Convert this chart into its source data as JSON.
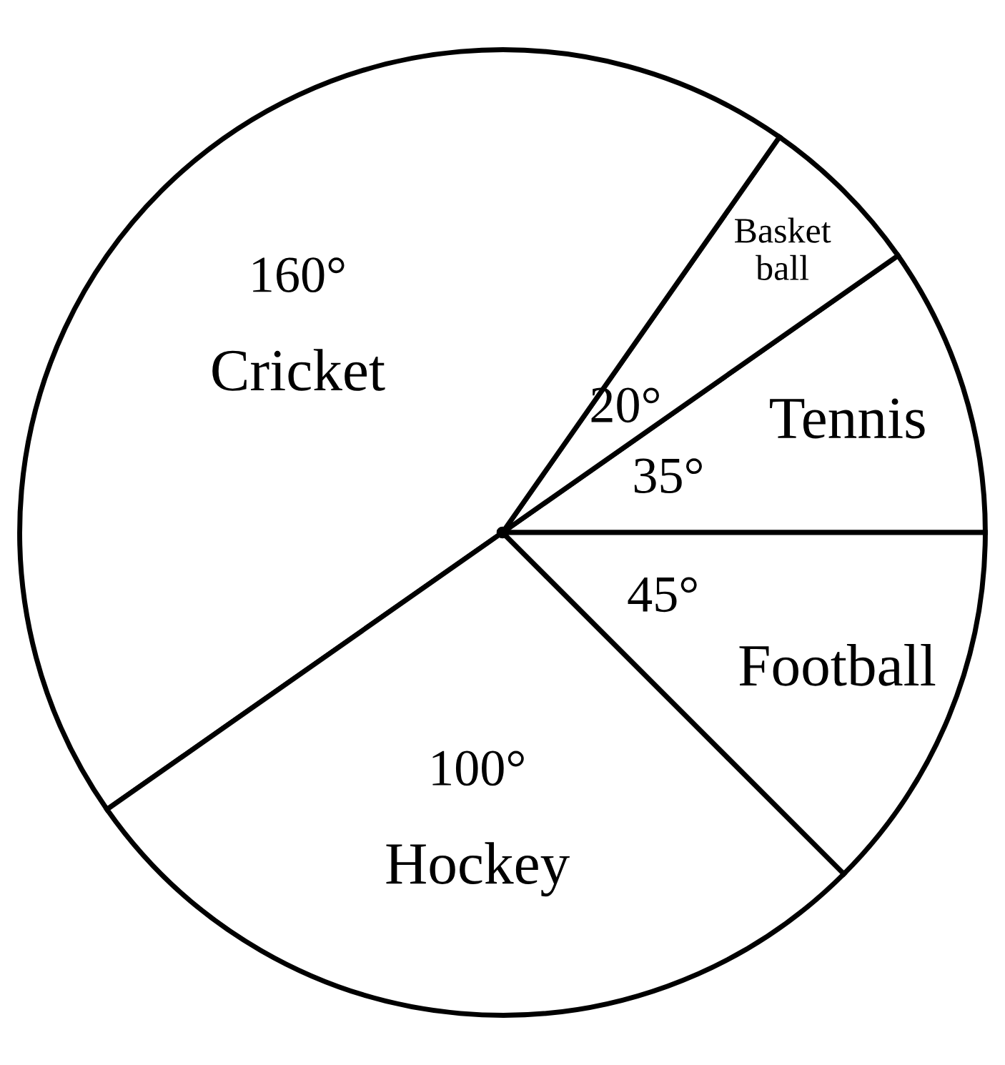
{
  "chart_data": {
    "type": "pie",
    "categories": [
      "Tennis",
      "Basket\nball",
      "Cricket",
      "Hockey",
      "Football"
    ],
    "values": [
      35,
      20,
      160,
      100,
      45
    ],
    "value_labels": [
      "35°",
      "20°",
      "160°",
      "100°",
      "45°"
    ],
    "colors": [
      "#ffffff",
      "#ffffff",
      "#ffffff",
      "#ffffff",
      "#ffffff"
    ]
  }
}
